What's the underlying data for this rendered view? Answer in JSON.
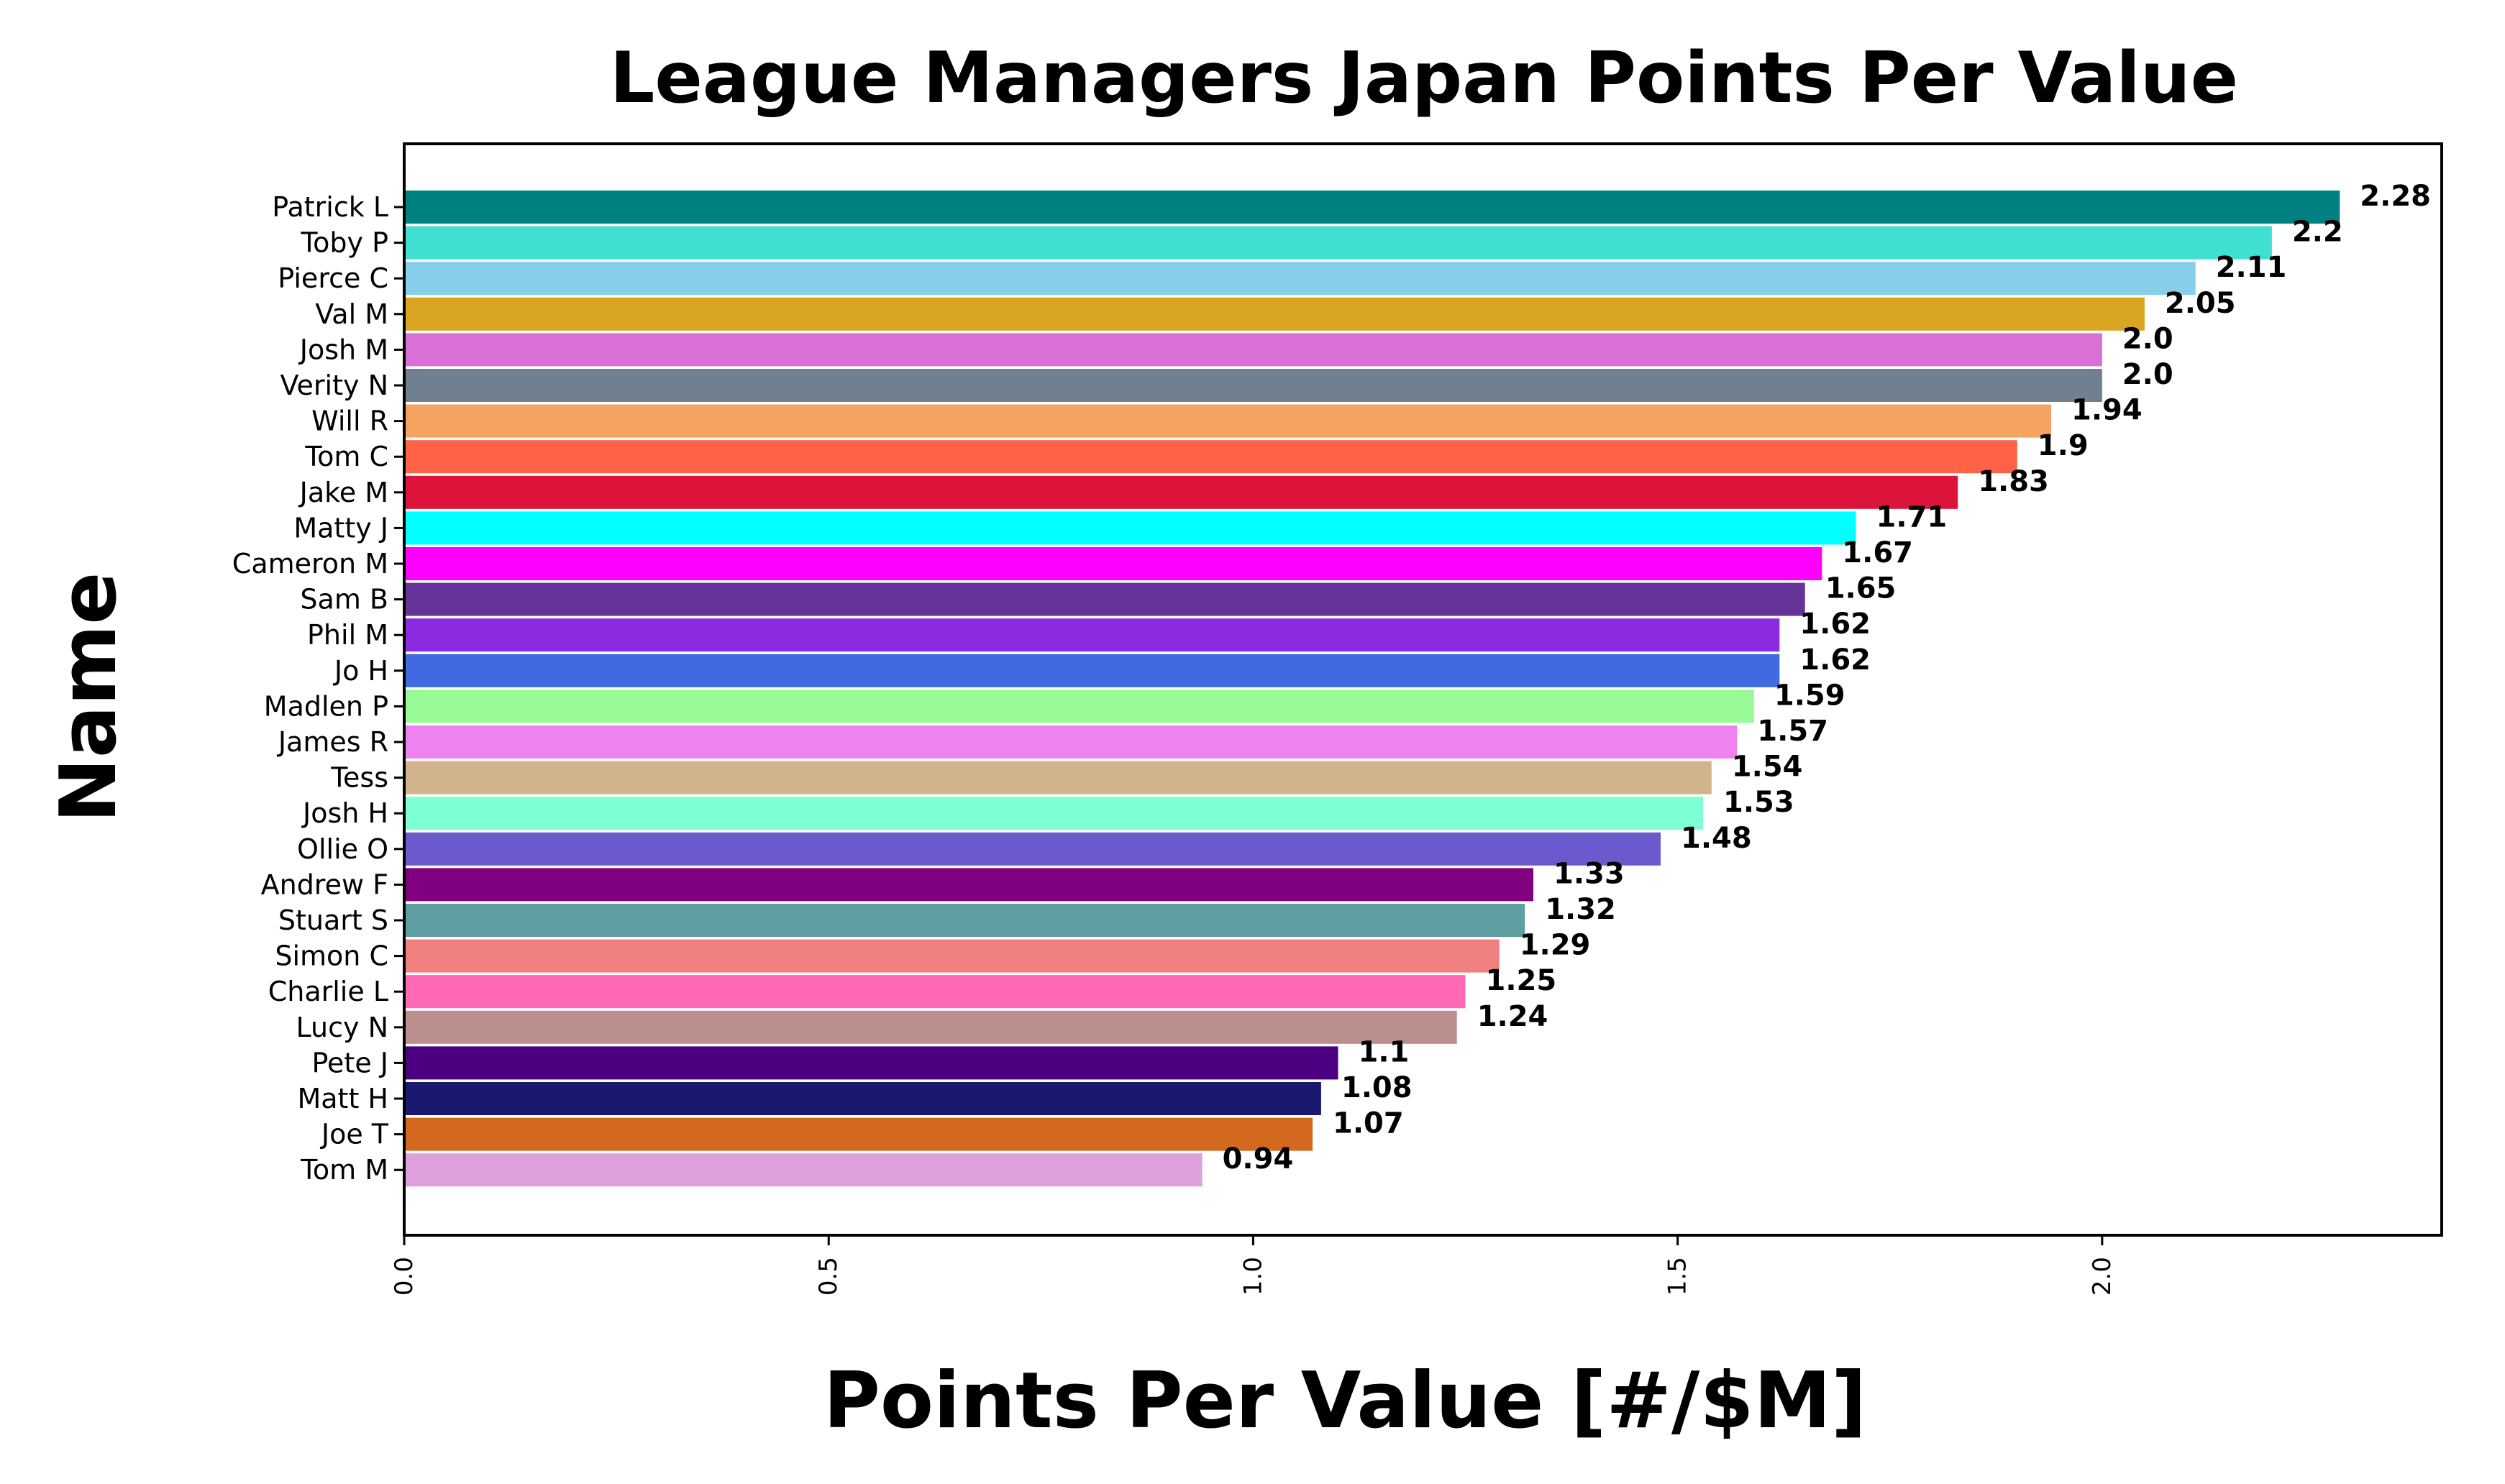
{
  "chart_data": {
    "type": "bar",
    "orientation": "horizontal",
    "title": "League Managers Japan Points Per Value",
    "xlabel": "Points Per Value [#/$M]",
    "ylabel": "Name",
    "xlim": [
      0,
      2.4
    ],
    "xticks": [
      "0.0",
      "0.5",
      "1.0",
      "1.5",
      "2.0"
    ],
    "xtick_values": [
      0,
      0.5,
      1.0,
      1.5,
      2.0
    ],
    "grid": false,
    "bars": [
      {
        "name": "Patrick L",
        "value": 2.28,
        "label": "2.28",
        "color": "#008080"
      },
      {
        "name": "Toby P",
        "value": 2.2,
        "label": "2.2",
        "color": "#40E0D0"
      },
      {
        "name": "Pierce C",
        "value": 2.11,
        "label": "2.11",
        "color": "#87CEEB"
      },
      {
        "name": "Val M",
        "value": 2.05,
        "label": "2.05",
        "color": "#DAA520"
      },
      {
        "name": "Josh M",
        "value": 2.0,
        "label": "2.0",
        "color": "#DA70D6"
      },
      {
        "name": "Verity N",
        "value": 2.0,
        "label": "2.0",
        "color": "#708090"
      },
      {
        "name": "Will R",
        "value": 1.94,
        "label": "1.94",
        "color": "#F4A460"
      },
      {
        "name": "Tom C",
        "value": 1.9,
        "label": "1.9",
        "color": "#FF6347"
      },
      {
        "name": "Jake M",
        "value": 1.83,
        "label": "1.83",
        "color": "#DC143C"
      },
      {
        "name": "Matty J",
        "value": 1.71,
        "label": "1.71",
        "color": "#00FFFF"
      },
      {
        "name": "Cameron M",
        "value": 1.67,
        "label": "1.67",
        "color": "#FF00FF"
      },
      {
        "name": "Sam B",
        "value": 1.65,
        "label": "1.65",
        "color": "#663399"
      },
      {
        "name": "Phil M",
        "value": 1.62,
        "label": "1.62",
        "color": "#8A2BE2"
      },
      {
        "name": "Jo H",
        "value": 1.62,
        "label": "1.62",
        "color": "#4169E1"
      },
      {
        "name": "Madlen P",
        "value": 1.59,
        "label": "1.59",
        "color": "#98FB98"
      },
      {
        "name": "James R",
        "value": 1.57,
        "label": "1.57",
        "color": "#EE82EE"
      },
      {
        "name": "Tess",
        "value": 1.54,
        "label": "1.54",
        "color": "#D2B48C"
      },
      {
        "name": "Josh H",
        "value": 1.53,
        "label": "1.53",
        "color": "#7FFFD4"
      },
      {
        "name": "Ollie O",
        "value": 1.48,
        "label": "1.48",
        "color": "#6A5ACD"
      },
      {
        "name": "Andrew F",
        "value": 1.33,
        "label": "1.33",
        "color": "#800080"
      },
      {
        "name": "Stuart S",
        "value": 1.32,
        "label": "1.32",
        "color": "#5F9EA0"
      },
      {
        "name": "Simon C",
        "value": 1.29,
        "label": "1.29",
        "color": "#F08080"
      },
      {
        "name": "Charlie L",
        "value": 1.25,
        "label": "1.25",
        "color": "#FF69B4"
      },
      {
        "name": "Lucy N",
        "value": 1.24,
        "label": "1.24",
        "color": "#BC8F8F"
      },
      {
        "name": "Pete J",
        "value": 1.1,
        "label": "1.1",
        "color": "#4B0082"
      },
      {
        "name": "Matt H",
        "value": 1.08,
        "label": "1.08",
        "color": "#191970"
      },
      {
        "name": "Joe T",
        "value": 1.07,
        "label": "1.07",
        "color": "#D2691E"
      },
      {
        "name": "Tom M",
        "value": 0.94,
        "label": "0.94",
        "color": "#DDA0DD"
      }
    ]
  }
}
